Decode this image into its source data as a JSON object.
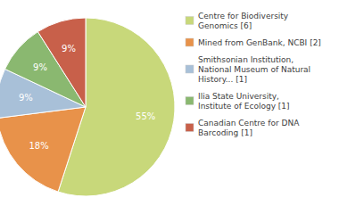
{
  "chart_data": {
    "type": "pie",
    "categories": [
      "Centre for Biodiversity\nGenomics [6]",
      "Mined from GenBank, NCBI [2]",
      "Smithsonian Institution,\nNational Museum of Natural\nHistory... [1]",
      "Ilia State University,\nInstitute of Ecology [1]",
      "Canadian Centre for DNA\nBarcoding [1]"
    ],
    "values": [
      55,
      18,
      9,
      9,
      9
    ],
    "value_labels": [
      "55%",
      "18%",
      "9%",
      "9%",
      "9%"
    ],
    "colors": [
      "#c8d87a",
      "#e8924a",
      "#a8c0d8",
      "#8ab870",
      "#c8604a"
    ],
    "data_labels": true,
    "legend": "right"
  }
}
